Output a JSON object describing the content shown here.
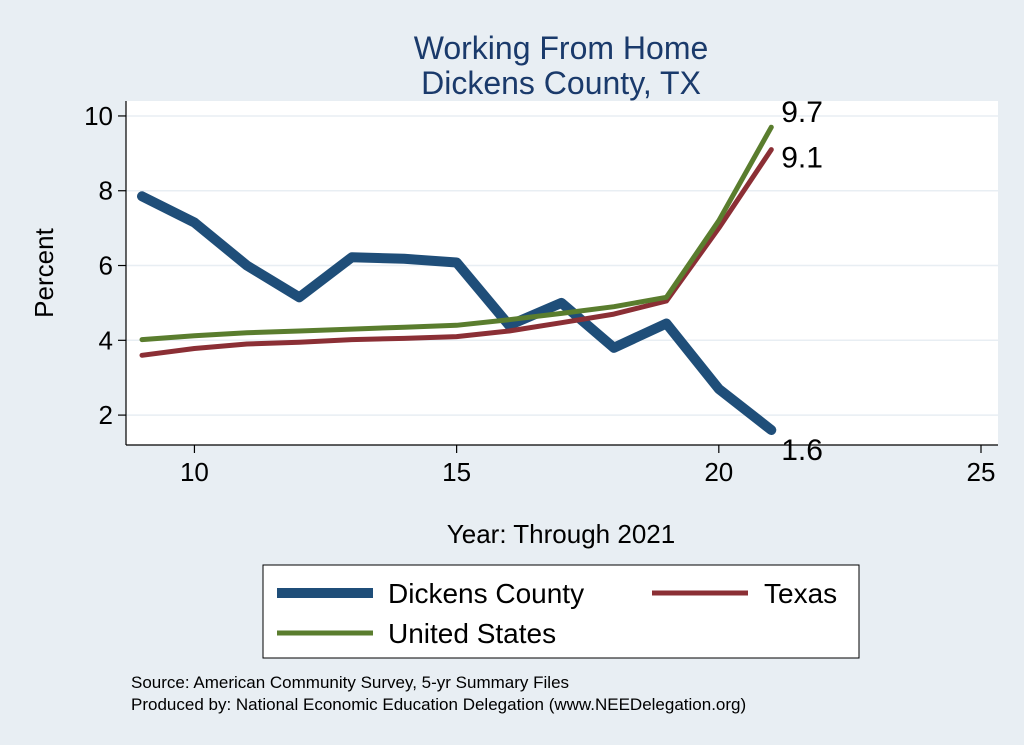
{
  "chart_data": {
    "type": "line",
    "title": [
      "Working From Home",
      "Dickens County, TX"
    ],
    "xlabel": "Year: Through 2021",
    "ylabel": "Percent",
    "xlim": [
      9,
      25
    ],
    "ylim": [
      1.2,
      10.4
    ],
    "xticks": [
      10,
      15,
      20,
      25
    ],
    "yticks": [
      2,
      4,
      6,
      8,
      10
    ],
    "grid": true,
    "x": [
      9,
      10,
      11,
      12,
      13,
      14,
      15,
      16,
      17,
      18,
      19,
      20,
      21
    ],
    "series": [
      {
        "name": "Dickens County",
        "color": "#1f4e79",
        "values": [
          7.85,
          7.15,
          6.0,
          5.15,
          6.22,
          6.18,
          6.08,
          4.4,
          5.0,
          3.8,
          4.45,
          2.7,
          1.6
        ],
        "end_label": "1.6"
      },
      {
        "name": "Texas",
        "color": "#8b2f35",
        "values": [
          3.6,
          3.78,
          3.9,
          3.95,
          4.02,
          4.05,
          4.1,
          4.25,
          4.47,
          4.7,
          5.05,
          7.0,
          9.1
        ],
        "end_label": "9.1"
      },
      {
        "name": "United States",
        "color": "#5a7d2e",
        "values": [
          4.02,
          4.12,
          4.2,
          4.25,
          4.3,
          4.35,
          4.4,
          4.55,
          4.72,
          4.9,
          5.15,
          7.2,
          9.7
        ],
        "end_label": "9.7"
      }
    ],
    "legend": {
      "placement": "bottom",
      "entries": [
        "Dickens County",
        "Texas",
        "United States"
      ]
    }
  },
  "footnote": {
    "source": "Source: American Community Survey, 5-yr Summary Files",
    "producer": "Produced by: National Economic Education Delegation (www.NEEDelegation.org)"
  }
}
